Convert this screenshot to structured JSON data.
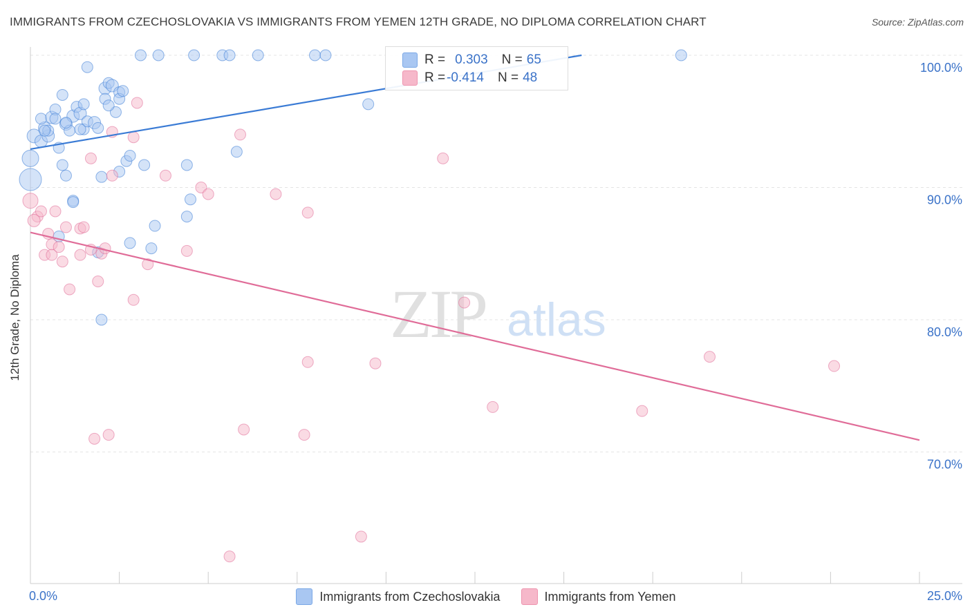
{
  "title": "IMMIGRANTS FROM CZECHOSLOVAKIA VS IMMIGRANTS FROM YEMEN 12TH GRADE, NO DIPLOMA CORRELATION CHART",
  "source": "Source: ZipAtlas.com",
  "watermark": {
    "zip": "ZIP",
    "atlas": "atlas"
  },
  "legend": {
    "r_label": "R =",
    "n_label": "N =",
    "rows": [
      {
        "r": "0.303",
        "n": "65",
        "color": "#a9c7f2"
      },
      {
        "r": "-0.414",
        "n": "48",
        "color": "#f6b8ca"
      }
    ]
  },
  "chart_data": {
    "type": "scatter",
    "title": "IMMIGRANTS FROM CZECHOSLOVAKIA VS IMMIGRANTS FROM YEMEN 12TH GRADE, NO DIPLOMA CORRELATION CHART",
    "xlabel": "",
    "ylabel": "12th Grade, No Diploma",
    "xlim": [
      0,
      25
    ],
    "ylim": [
      60,
      100.5
    ],
    "x_tick_labels": [
      "0.0%",
      "25.0%"
    ],
    "y_tick_values": [
      70,
      80,
      90,
      100
    ],
    "y_tick_labels": [
      "70.0%",
      "80.0%",
      "90.0%",
      "100.0%"
    ],
    "grid": true,
    "legend_position": "top-center",
    "series": [
      {
        "name": "Immigrants from Czechoslovakia",
        "color": "#3a7bd5",
        "fill": "#a9c7f2",
        "trend": {
          "x": [
            0,
            15.5
          ],
          "y": [
            92.9,
            100
          ]
        },
        "points": [
          [
            0.1,
            93.9,
            10
          ],
          [
            0.3,
            93.5,
            9
          ],
          [
            0.5,
            93.9,
            9
          ],
          [
            0.4,
            94.5,
            9
          ],
          [
            0.5,
            94.3,
            8
          ],
          [
            0.3,
            95.2,
            8
          ],
          [
            0.6,
            95.3,
            9
          ],
          [
            0.7,
            95.9,
            8
          ],
          [
            0.8,
            93.0,
            8
          ],
          [
            0.9,
            97.0,
            8
          ],
          [
            1.0,
            94.8,
            9
          ],
          [
            1.1,
            94.3,
            8
          ],
          [
            1.2,
            95.4,
            9
          ],
          [
            1.3,
            96.1,
            8
          ],
          [
            1.4,
            95.6,
            9
          ],
          [
            1.5,
            96.3,
            8
          ],
          [
            1.5,
            94.4,
            8
          ],
          [
            1.6,
            95.0,
            8
          ],
          [
            1.8,
            94.9,
            9
          ],
          [
            1.9,
            94.5,
            8
          ],
          [
            1.6,
            99.1,
            8
          ],
          [
            2.1,
            97.5,
            9
          ],
          [
            2.2,
            97.9,
            8
          ],
          [
            2.3,
            97.7,
            9
          ],
          [
            2.5,
            97.2,
            8
          ],
          [
            2.5,
            96.7,
            8
          ],
          [
            2.4,
            95.7,
            8
          ],
          [
            2.1,
            96.7,
            8
          ],
          [
            2.2,
            96.2,
            8
          ],
          [
            0.0,
            92.2,
            12
          ],
          [
            0.0,
            90.6,
            16
          ],
          [
            0.9,
            91.7,
            8
          ],
          [
            1.0,
            90.9,
            8
          ],
          [
            2.0,
            90.8,
            8
          ],
          [
            2.5,
            91.2,
            8
          ],
          [
            2.7,
            92.0,
            8
          ],
          [
            2.8,
            92.4,
            8
          ],
          [
            3.2,
            91.7,
            8
          ],
          [
            4.4,
            91.7,
            8
          ],
          [
            5.8,
            92.7,
            8
          ],
          [
            1.2,
            89.0,
            8
          ],
          [
            1.2,
            88.9,
            8
          ],
          [
            4.5,
            89.1,
            8
          ],
          [
            4.4,
            87.8,
            8
          ],
          [
            3.5,
            87.1,
            8
          ],
          [
            0.8,
            86.3,
            8
          ],
          [
            2.8,
            85.8,
            8
          ],
          [
            3.4,
            85.4,
            8
          ],
          [
            1.9,
            85.1,
            8
          ],
          [
            2.0,
            80.0,
            8
          ],
          [
            3.1,
            100.0,
            8
          ],
          [
            3.6,
            100.0,
            8
          ],
          [
            4.6,
            100.0,
            8
          ],
          [
            5.4,
            100.0,
            8
          ],
          [
            5.6,
            100.0,
            8
          ],
          [
            6.4,
            100.0,
            8
          ],
          [
            8.0,
            100.0,
            8
          ],
          [
            8.3,
            100.0,
            8
          ],
          [
            9.5,
            96.3,
            8
          ],
          [
            18.3,
            100.0,
            8
          ],
          [
            1.0,
            94.9,
            8
          ],
          [
            0.4,
            94.3,
            8
          ],
          [
            1.4,
            94.4,
            8
          ],
          [
            0.7,
            95.2,
            8
          ],
          [
            2.6,
            97.3,
            8
          ]
        ]
      },
      {
        "name": "Immigrants from Yemen",
        "color": "#e06c98",
        "fill": "#f6b8ca",
        "trend": {
          "x": [
            0,
            25
          ],
          "y": [
            86.6,
            70.9
          ]
        },
        "points": [
          [
            0.0,
            89.0,
            11
          ],
          [
            0.2,
            87.8,
            8
          ],
          [
            0.3,
            88.2,
            8
          ],
          [
            0.1,
            87.5,
            9
          ],
          [
            0.5,
            86.5,
            8
          ],
          [
            0.7,
            88.2,
            8
          ],
          [
            0.6,
            85.7,
            8
          ],
          [
            0.8,
            85.5,
            8
          ],
          [
            1.0,
            87.0,
            8
          ],
          [
            0.4,
            84.9,
            8
          ],
          [
            0.6,
            84.9,
            8
          ],
          [
            0.9,
            84.4,
            8
          ],
          [
            1.4,
            86.9,
            8
          ],
          [
            1.5,
            87.0,
            8
          ],
          [
            1.7,
            85.3,
            8
          ],
          [
            1.4,
            84.9,
            8
          ],
          [
            2.0,
            85.0,
            8
          ],
          [
            2.1,
            85.4,
            8
          ],
          [
            1.7,
            92.2,
            8
          ],
          [
            2.3,
            90.9,
            8
          ],
          [
            2.3,
            94.2,
            8
          ],
          [
            2.9,
            93.8,
            8
          ],
          [
            3.0,
            96.4,
            8
          ],
          [
            3.8,
            90.9,
            8
          ],
          [
            4.8,
            90.0,
            8
          ],
          [
            5.0,
            89.5,
            8
          ],
          [
            5.9,
            94.0,
            8
          ],
          [
            6.9,
            89.5,
            8
          ],
          [
            7.8,
            88.1,
            8
          ],
          [
            11.6,
            92.2,
            8
          ],
          [
            3.3,
            84.2,
            8
          ],
          [
            4.4,
            85.2,
            8
          ],
          [
            1.1,
            82.3,
            8
          ],
          [
            1.9,
            82.9,
            8
          ],
          [
            2.9,
            81.5,
            8
          ],
          [
            12.2,
            81.3,
            8
          ],
          [
            7.8,
            76.8,
            8
          ],
          [
            9.7,
            76.7,
            8
          ],
          [
            19.1,
            77.2,
            8
          ],
          [
            22.6,
            76.5,
            8
          ],
          [
            13.0,
            73.4,
            8
          ],
          [
            17.2,
            73.1,
            8
          ],
          [
            1.8,
            71.0,
            8
          ],
          [
            2.2,
            71.3,
            8
          ],
          [
            6.0,
            71.7,
            8
          ],
          [
            7.7,
            71.3,
            8
          ],
          [
            9.3,
            63.6,
            8
          ],
          [
            5.6,
            62.1,
            8
          ]
        ]
      }
    ]
  }
}
